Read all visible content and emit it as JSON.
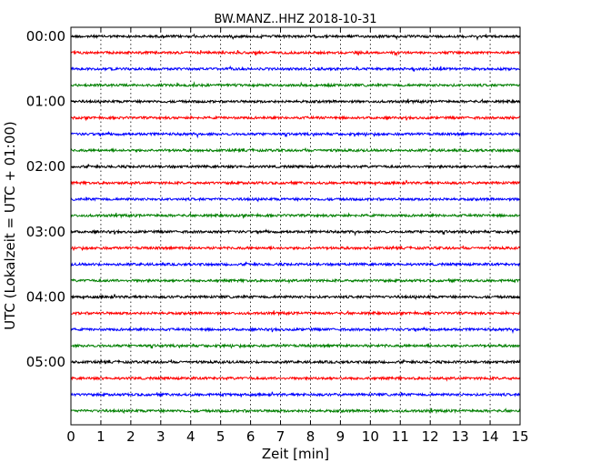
{
  "chart_data": {
    "type": "line",
    "title": "BW.MANZ..HHZ 2018-10-31",
    "xlabel": "Zeit  [min]",
    "ylabel": "UTC (Lokalzeit = UTC + 01:00)",
    "xlim": [
      0,
      15
    ],
    "x_ticks": [
      "0",
      "1",
      "2",
      "3",
      "4",
      "5",
      "6",
      "7",
      "8",
      "9",
      "10",
      "11",
      "12",
      "13",
      "14",
      "15"
    ],
    "y_tick_labels": [
      "00:00",
      "01:00",
      "02:00",
      "03:00",
      "04:00",
      "05:00"
    ],
    "trace_interval_min": 15,
    "trace_count": 24,
    "trace_colors": [
      "#000000",
      "#ff0000",
      "#0000ff",
      "#007f00"
    ],
    "grid": "vertical dotted",
    "series": [
      {
        "start": "00:00"
      },
      {
        "start": "00:15"
      },
      {
        "start": "00:30"
      },
      {
        "start": "00:45"
      },
      {
        "start": "01:00"
      },
      {
        "start": "01:15"
      },
      {
        "start": "01:30"
      },
      {
        "start": "01:45"
      },
      {
        "start": "02:00"
      },
      {
        "start": "02:15"
      },
      {
        "start": "02:30"
      },
      {
        "start": "02:45"
      },
      {
        "start": "03:00"
      },
      {
        "start": "03:15"
      },
      {
        "start": "03:30"
      },
      {
        "start": "03:45"
      },
      {
        "start": "04:00"
      },
      {
        "start": "04:15"
      },
      {
        "start": "04:30"
      },
      {
        "start": "04:45"
      },
      {
        "start": "05:00"
      },
      {
        "start": "05:15"
      },
      {
        "start": "05:30"
      },
      {
        "start": "05:45"
      }
    ]
  }
}
